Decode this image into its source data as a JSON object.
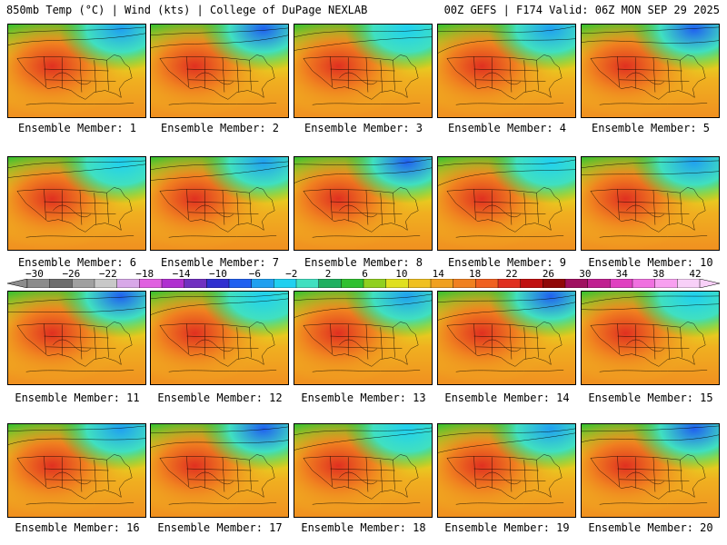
{
  "header": {
    "left_title": "850mb Temp (°C) | Wind (kts) | College of DuPage NEXLAB",
    "right_title": "00Z GEFS | F174 Valid: 06Z MON SEP 29 2025"
  },
  "panels": [
    {
      "label": "Ensemble Member: 1"
    },
    {
      "label": "Ensemble Member: 2"
    },
    {
      "label": "Ensemble Member: 3"
    },
    {
      "label": "Ensemble Member: 4"
    },
    {
      "label": "Ensemble Member: 5"
    },
    {
      "label": "Ensemble Member: 6"
    },
    {
      "label": "Ensemble Member: 7"
    },
    {
      "label": "Ensemble Member: 8"
    },
    {
      "label": "Ensemble Member: 9"
    },
    {
      "label": "Ensemble Member: 10"
    },
    {
      "label": "Ensemble Member: 11"
    },
    {
      "label": "Ensemble Member: 12"
    },
    {
      "label": "Ensemble Member: 13"
    },
    {
      "label": "Ensemble Member: 14"
    },
    {
      "label": "Ensemble Member: 15"
    },
    {
      "label": "Ensemble Member: 16"
    },
    {
      "label": "Ensemble Member: 17"
    },
    {
      "label": "Ensemble Member: 18"
    },
    {
      "label": "Ensemble Member: 19"
    },
    {
      "label": "Ensemble Member: 20"
    }
  ],
  "colorbar": {
    "tick_labels": [
      "−30",
      "−26",
      "−22",
      "−18",
      "−14",
      "−10",
      "−6",
      "−2",
      "2",
      "6",
      "10",
      "14",
      "18",
      "22",
      "26",
      "30",
      "34",
      "38",
      "42"
    ],
    "colors": [
      "#8c8c8c",
      "#6e6e6e",
      "#a0a0a0",
      "#c8c8c8",
      "#d8a8e8",
      "#e060e0",
      "#b030d0",
      "#7030c0",
      "#3030d0",
      "#2060f0",
      "#20a0f0",
      "#20d0f0",
      "#40e0c0",
      "#20b060",
      "#30c030",
      "#90d020",
      "#e0e020",
      "#f0c020",
      "#f0a020",
      "#f08020",
      "#f06020",
      "#e03020",
      "#c01010",
      "#900808",
      "#a01060",
      "#c02090",
      "#e040c0",
      "#f070e0",
      "#f8a0f0",
      "#f8d0f8"
    ]
  }
}
